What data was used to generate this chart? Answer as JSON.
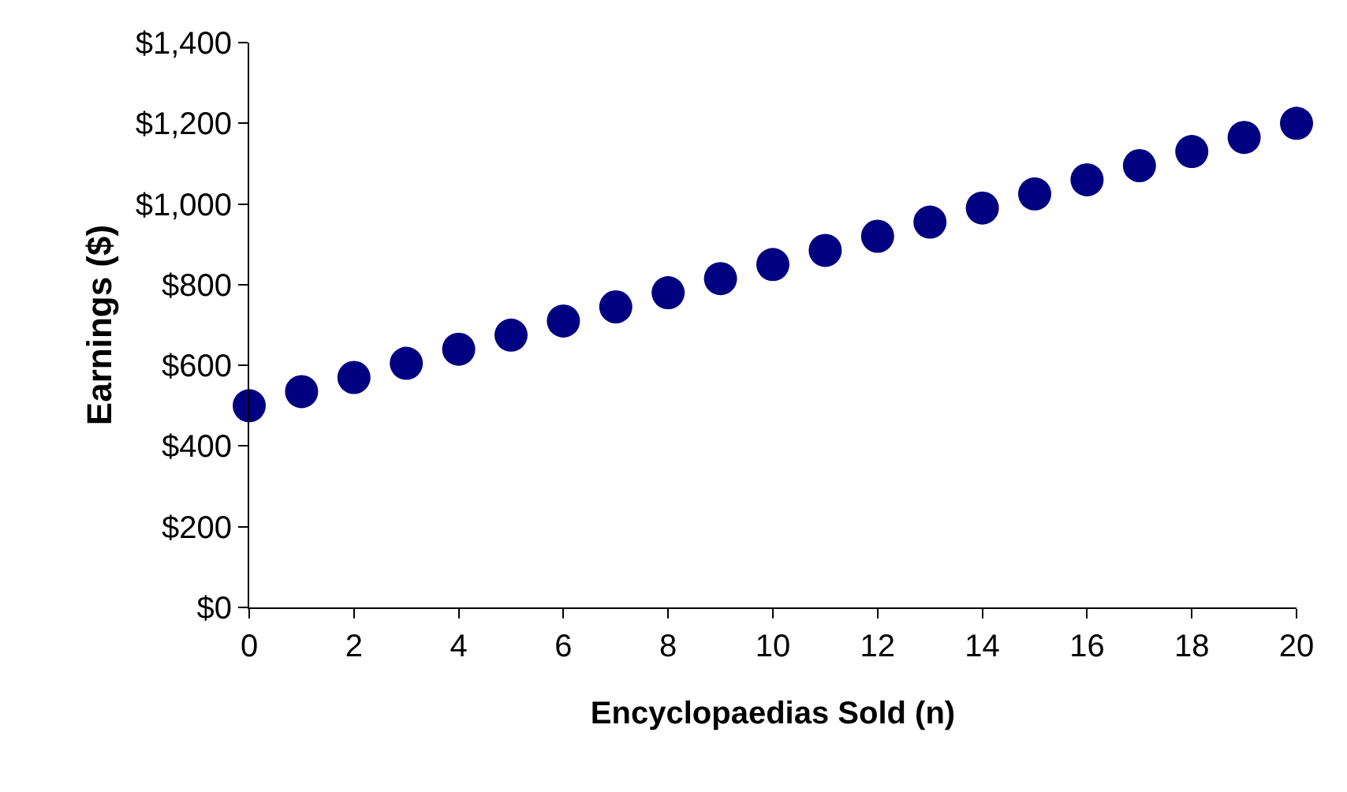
{
  "chart_data": {
    "type": "scatter",
    "xlabel": "Encyclopaedias Sold (n)",
    "ylabel": "Earnings ($)",
    "x": [
      0,
      1,
      2,
      3,
      4,
      5,
      6,
      7,
      8,
      9,
      10,
      11,
      12,
      13,
      14,
      15,
      16,
      17,
      18,
      19,
      20
    ],
    "series": [
      {
        "color": "#000080",
        "values": [
          500,
          535,
          570,
          605,
          640,
          675,
          710,
          745,
          780,
          815,
          850,
          885,
          920,
          955,
          990,
          1025,
          1060,
          1095,
          1130,
          1165,
          1200
        ]
      }
    ],
    "xlim": [
      0,
      20
    ],
    "xticks": [
      0,
      2,
      4,
      6,
      8,
      10,
      12,
      14,
      16,
      18,
      20
    ],
    "ylim": [
      0,
      1400
    ],
    "yticks": [
      {
        "value": 0,
        "label": "$0"
      },
      {
        "value": 200,
        "label": "$200"
      },
      {
        "value": 400,
        "label": "$400"
      },
      {
        "value": 600,
        "label": "$600"
      },
      {
        "value": 800,
        "label": "$800"
      },
      {
        "value": 1000,
        "label": "$1,000"
      },
      {
        "value": 1200,
        "label": "$1,200"
      },
      {
        "value": 1400,
        "label": "$1,400"
      }
    ],
    "marker": "circle"
  }
}
